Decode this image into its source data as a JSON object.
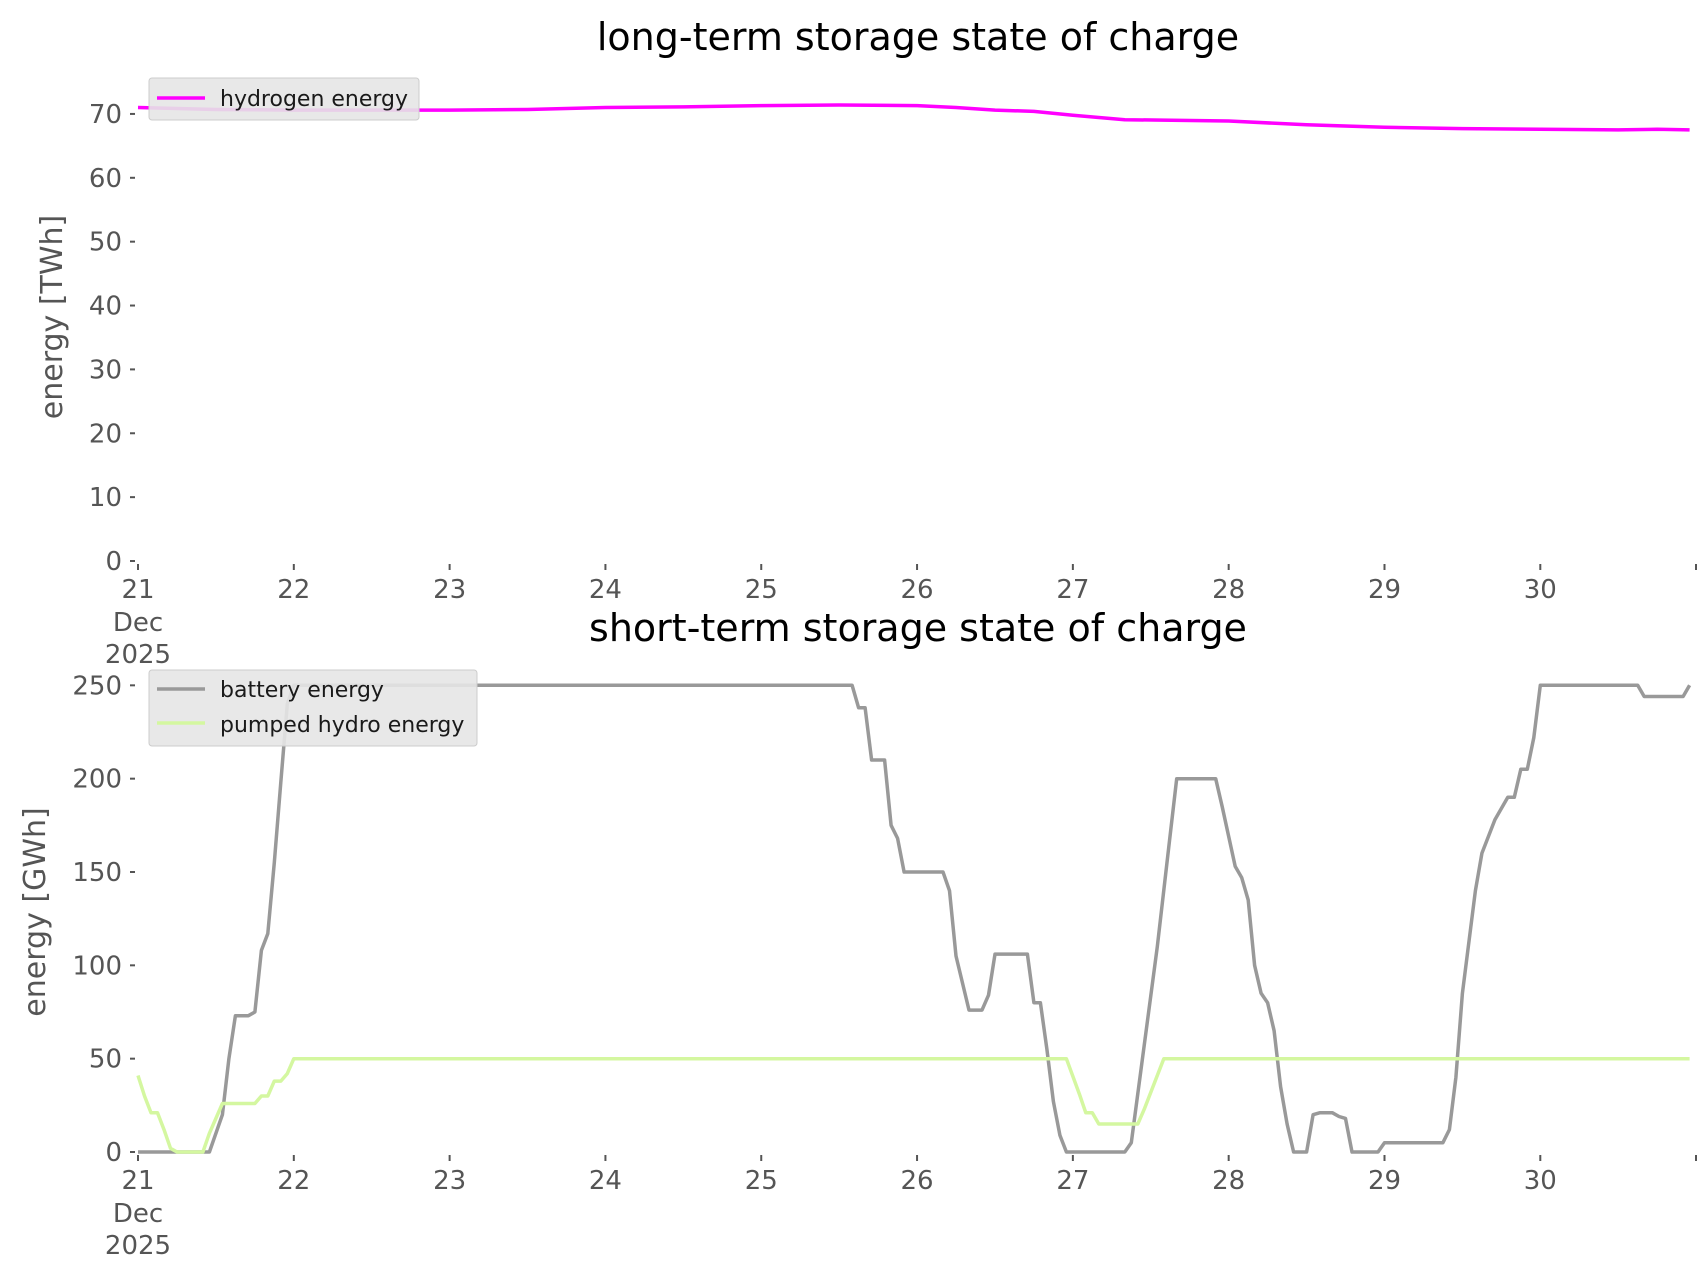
{
  "chart_data": [
    {
      "type": "line",
      "title": "long-term storage state of charge",
      "xlabel": "",
      "ylabel": "energy [TWh]",
      "x_ticks": [
        "21",
        "22",
        "23",
        "24",
        "25",
        "26",
        "27",
        "28",
        "29",
        "30"
      ],
      "x_tick_sublabels": [
        "Dec",
        "2025"
      ],
      "xlim": [
        "2025-12-21T00:00",
        "2025-12-30T23:59"
      ],
      "y_ticks": [
        "0",
        "10",
        "20",
        "30",
        "40",
        "50",
        "60",
        "70"
      ],
      "ylim": [
        0,
        75
      ],
      "grid": false,
      "legend_position": "top-left",
      "series": [
        {
          "name": "hydrogen energy",
          "color": "#ff00ff",
          "points": [
            [
              "2025-12-21T00:00",
              71.0
            ],
            [
              "2025-12-21T12:00",
              70.7
            ],
            [
              "2025-12-22T00:00",
              70.6
            ],
            [
              "2025-12-23T00:00",
              70.6
            ],
            [
              "2025-12-23T12:00",
              70.7
            ],
            [
              "2025-12-24T00:00",
              71.0
            ],
            [
              "2025-12-24T12:00",
              71.1
            ],
            [
              "2025-12-25T00:00",
              71.3
            ],
            [
              "2025-12-25T12:00",
              71.4
            ],
            [
              "2025-12-26T00:00",
              71.3
            ],
            [
              "2025-12-26T06:00",
              71.0
            ],
            [
              "2025-12-26T12:00",
              70.6
            ],
            [
              "2025-12-26T18:00",
              70.4
            ],
            [
              "2025-12-27T00:00",
              69.8
            ],
            [
              "2025-12-27T08:00",
              69.1
            ],
            [
              "2025-12-28T00:00",
              68.9
            ],
            [
              "2025-12-28T12:00",
              68.3
            ],
            [
              "2025-12-29T00:00",
              67.9
            ],
            [
              "2025-12-29T12:00",
              67.7
            ],
            [
              "2025-12-30T00:00",
              67.6
            ],
            [
              "2025-12-30T12:00",
              67.5
            ],
            [
              "2025-12-30T18:00",
              67.6
            ],
            [
              "2025-12-30T23:00",
              67.5
            ]
          ]
        }
      ]
    },
    {
      "type": "line",
      "title": "short-term storage state of charge",
      "xlabel": "",
      "ylabel": "energy [GWh]",
      "x_ticks": [
        "21",
        "22",
        "23",
        "24",
        "25",
        "26",
        "27",
        "28",
        "29",
        "30"
      ],
      "x_tick_sublabels": [
        "Dec",
        "2025"
      ],
      "xlim": [
        "2025-12-21T00:00",
        "2025-12-30T23:59"
      ],
      "y_ticks": [
        "0",
        "50",
        "100",
        "150",
        "200",
        "250"
      ],
      "ylim": [
        0,
        255
      ],
      "grid": false,
      "legend_position": "top-left",
      "series": [
        {
          "name": "battery energy",
          "color": "#999999",
          "points": [
            [
              "2025-12-21T00:00",
              0
            ],
            [
              "2025-12-21T11:00",
              0
            ],
            [
              "2025-12-21T13:00",
              20
            ],
            [
              "2025-12-21T14:00",
              50
            ],
            [
              "2025-12-21T15:00",
              73
            ],
            [
              "2025-12-21T16:00",
              73
            ],
            [
              "2025-12-21T17:00",
              73
            ],
            [
              "2025-12-21T18:00",
              75
            ],
            [
              "2025-12-21T19:00",
              108
            ],
            [
              "2025-12-21T20:00",
              117
            ],
            [
              "2025-12-21T21:00",
              155
            ],
            [
              "2025-12-21T22:00",
              198
            ],
            [
              "2025-12-21T23:00",
              240
            ],
            [
              "2025-12-22T00:00",
              250
            ],
            [
              "2025-12-25T14:00",
              250
            ],
            [
              "2025-12-25T15:00",
              238
            ],
            [
              "2025-12-25T16:00",
              238
            ],
            [
              "2025-12-25T17:00",
              210
            ],
            [
              "2025-12-25T18:00",
              210
            ],
            [
              "2025-12-25T19:00",
              210
            ],
            [
              "2025-12-25T20:00",
              175
            ],
            [
              "2025-12-25T21:00",
              168
            ],
            [
              "2025-12-25T22:00",
              150
            ],
            [
              "2025-12-26T00:00",
              150
            ],
            [
              "2025-12-26T04:00",
              150
            ],
            [
              "2025-12-26T05:00",
              140
            ],
            [
              "2025-12-26T06:00",
              105
            ],
            [
              "2025-12-26T08:00",
              76
            ],
            [
              "2025-12-26T10:00",
              76
            ],
            [
              "2025-12-26T11:00",
              84
            ],
            [
              "2025-12-26T12:00",
              106
            ],
            [
              "2025-12-26T17:00",
              106
            ],
            [
              "2025-12-26T18:00",
              80
            ],
            [
              "2025-12-26T19:00",
              80
            ],
            [
              "2025-12-26T20:00",
              55
            ],
            [
              "2025-12-26T21:00",
              27
            ],
            [
              "2025-12-26T22:00",
              9
            ],
            [
              "2025-12-26T23:00",
              0
            ],
            [
              "2025-12-27T08:00",
              0
            ],
            [
              "2025-12-27T09:00",
              5
            ],
            [
              "2025-12-27T13:00",
              110
            ],
            [
              "2025-12-27T15:00",
              170
            ],
            [
              "2025-12-27T16:00",
              200
            ],
            [
              "2025-12-27T22:00",
              200
            ],
            [
              "2025-12-27T23:00",
              185
            ],
            [
              "2025-12-28T01:00",
              153
            ],
            [
              "2025-12-28T02:00",
              147
            ],
            [
              "2025-12-28T03:00",
              135
            ],
            [
              "2025-12-28T04:00",
              100
            ],
            [
              "2025-12-28T05:00",
              85
            ],
            [
              "2025-12-28T06:00",
              80
            ],
            [
              "2025-12-28T07:00",
              65
            ],
            [
              "2025-12-28T08:00",
              35
            ],
            [
              "2025-12-28T09:00",
              15
            ],
            [
              "2025-12-28T10:00",
              0
            ],
            [
              "2025-12-28T12:00",
              0
            ],
            [
              "2025-12-28T13:00",
              20
            ],
            [
              "2025-12-28T14:00",
              21
            ],
            [
              "2025-12-28T16:00",
              21
            ],
            [
              "2025-12-28T17:00",
              19
            ],
            [
              "2025-12-28T18:00",
              18
            ],
            [
              "2025-12-28T19:00",
              0
            ],
            [
              "2025-12-28T23:00",
              0
            ],
            [
              "2025-12-29T00:00",
              5
            ],
            [
              "2025-12-29T09:00",
              5
            ],
            [
              "2025-12-29T10:00",
              12
            ],
            [
              "2025-12-29T11:00",
              40
            ],
            [
              "2025-12-29T12:00",
              85
            ],
            [
              "2025-12-29T14:00",
              140
            ],
            [
              "2025-12-29T15:00",
              160
            ],
            [
              "2025-12-29T17:00",
              178
            ],
            [
              "2025-12-29T19:00",
              190
            ],
            [
              "2025-12-29T20:00",
              190
            ],
            [
              "2025-12-29T21:00",
              205
            ],
            [
              "2025-12-29T22:00",
              205
            ],
            [
              "2025-12-29T23:00",
              222
            ],
            [
              "2025-12-30T00:00",
              250
            ],
            [
              "2025-12-30T15:00",
              250
            ],
            [
              "2025-12-30T16:00",
              244
            ],
            [
              "2025-12-30T22:00",
              244
            ],
            [
              "2025-12-30T23:00",
              250
            ]
          ]
        },
        {
          "name": "pumped hydro energy",
          "color": "#d4f7a0",
          "points": [
            [
              "2025-12-21T00:00",
              41
            ],
            [
              "2025-12-21T01:00",
              30
            ],
            [
              "2025-12-21T02:00",
              21
            ],
            [
              "2025-12-21T03:00",
              21
            ],
            [
              "2025-12-21T04:00",
              12
            ],
            [
              "2025-12-21T05:00",
              2
            ],
            [
              "2025-12-21T06:00",
              0
            ],
            [
              "2025-12-21T10:00",
              0
            ],
            [
              "2025-12-21T11:00",
              10
            ],
            [
              "2025-12-21T13:00",
              26
            ],
            [
              "2025-12-21T18:00",
              26
            ],
            [
              "2025-12-21T19:00",
              30
            ],
            [
              "2025-12-21T20:00",
              30
            ],
            [
              "2025-12-21T21:00",
              38
            ],
            [
              "2025-12-21T22:00",
              38
            ],
            [
              "2025-12-21T23:00",
              42
            ],
            [
              "2025-12-22T00:00",
              50
            ],
            [
              "2025-12-26T23:00",
              50
            ],
            [
              "2025-12-27T01:00",
              31
            ],
            [
              "2025-12-27T02:00",
              21
            ],
            [
              "2025-12-27T03:00",
              21
            ],
            [
              "2025-12-27T04:00",
              15
            ],
            [
              "2025-12-27T10:00",
              15
            ],
            [
              "2025-12-27T11:00",
              23
            ],
            [
              "2025-12-27T13:00",
              41
            ],
            [
              "2025-12-27T14:00",
              50
            ],
            [
              "2025-12-30T23:00",
              50
            ]
          ]
        }
      ]
    }
  ]
}
